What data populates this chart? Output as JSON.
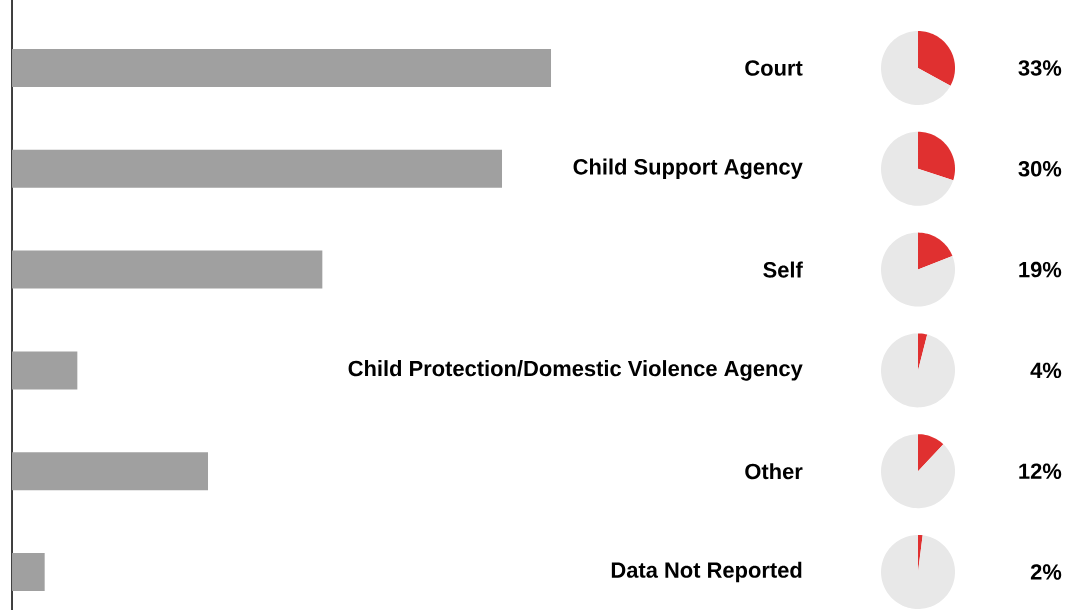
{
  "chart_data": [
    {
      "type": "bar",
      "orientation": "horizontal",
      "categories": [
        "Court",
        "Child Support Agency",
        "Self",
        "Child Protection/Domestic Violence Agency",
        "Other",
        "Data Not Reported"
      ],
      "values": [
        33,
        30,
        19,
        4,
        12,
        2
      ],
      "value_labels": [
        "33%",
        "30%",
        "19%",
        "4%",
        "12%",
        "2%"
      ],
      "color": "#a0a0a0"
    },
    {
      "type": "pie",
      "categories": [
        null,
        null
      ],
      "values": [
        33,
        67
      ],
      "colors": [
        "#e03030",
        "#e8e8e8"
      ]
    },
    {
      "type": "pie",
      "categories": [
        null,
        null
      ],
      "values": [
        30,
        70
      ],
      "colors": [
        "#e03030",
        "#e8e8e8"
      ]
    },
    {
      "type": "pie",
      "categories": [
        null,
        null
      ],
      "values": [
        19,
        81
      ],
      "colors": [
        "#e03030",
        "#e8e8e8"
      ]
    },
    {
      "type": "pie",
      "categories": [
        null,
        null
      ],
      "values": [
        4,
        96
      ],
      "colors": [
        "#e03030",
        "#e8e8e8"
      ]
    },
    {
      "type": "pie",
      "categories": [
        null,
        null
      ],
      "values": [
        12,
        88
      ],
      "colors": [
        "#e03030",
        "#e8e8e8"
      ]
    },
    {
      "type": "pie",
      "categories": [
        null,
        null
      ],
      "values": [
        2,
        98
      ],
      "colors": [
        "#e03030",
        "#e8e8e8"
      ]
    }
  ]
}
